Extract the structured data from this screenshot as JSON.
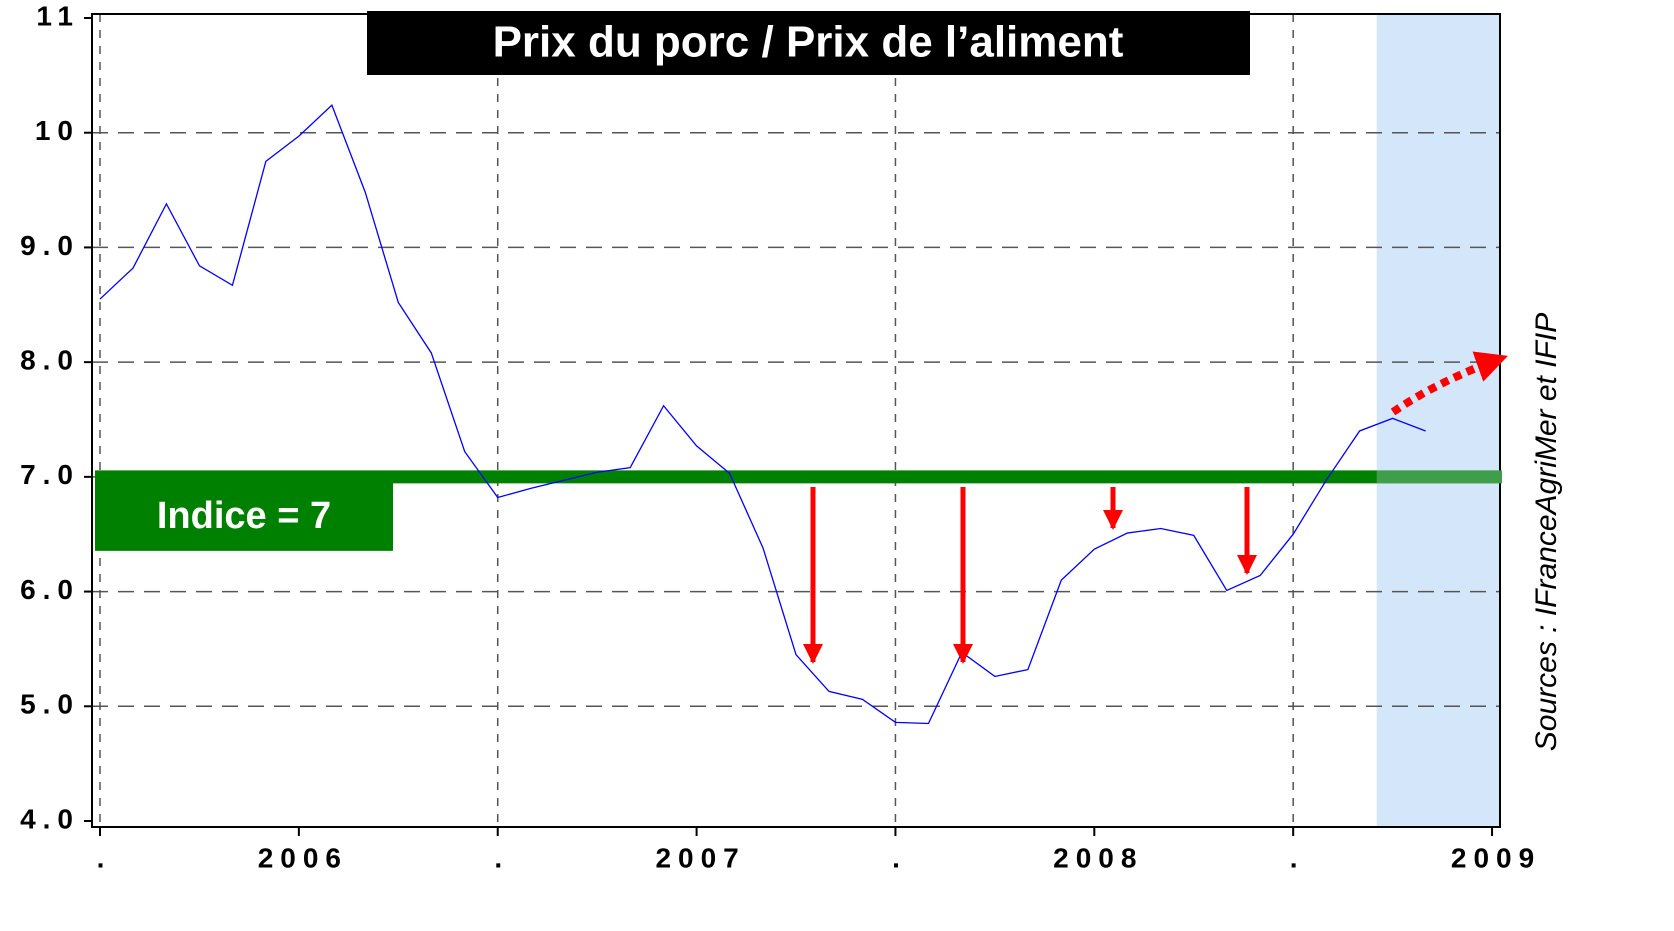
{
  "chart_data": {
    "type": "line",
    "title": "Prix du porc / Prix de l’aliment",
    "source": "Sources : IFranceAgriMer et IFIP",
    "x": [
      2005.5,
      2005.583,
      2005.667,
      2005.75,
      2005.833,
      2005.917,
      2006,
      2006.083,
      2006.167,
      2006.25,
      2006.333,
      2006.417,
      2006.5,
      2006.583,
      2006.667,
      2006.75,
      2006.833,
      2006.917,
      2007,
      2007.083,
      2007.167,
      2007.25,
      2007.333,
      2007.417,
      2007.5,
      2007.583,
      2007.667,
      2007.75,
      2007.833,
      2007.917,
      2008,
      2008.083,
      2008.167,
      2008.25,
      2008.333,
      2008.417,
      2008.5,
      2008.583,
      2008.667,
      2008.75,
      2008.833
    ],
    "series": [
      {
        "name": "Prix du porc / Prix de l’aliment",
        "color": "#0000ff",
        "values": [
          8.55,
          8.82,
          9.38,
          8.84,
          8.67,
          9.75,
          9.97,
          10.24,
          9.48,
          8.52,
          8.08,
          7.22,
          6.82,
          6.9,
          6.97,
          7.04,
          7.08,
          7.62,
          7.27,
          7.03,
          6.38,
          5.45,
          5.13,
          5.06,
          4.86,
          4.85,
          5.47,
          5.26,
          5.32,
          6.1,
          6.37,
          6.51,
          6.55,
          6.49,
          6.01,
          6.14,
          6.5,
          6.97,
          7.4,
          7.51,
          7.4
        ]
      }
    ],
    "xlim": [
      2005.5,
      2009.02
    ],
    "xticks": [
      {
        "value": 2005.5,
        "label": "."
      },
      2006,
      {
        "value": 2006.5,
        "label": "."
      },
      2007,
      {
        "value": 2007.5,
        "label": "."
      },
      2008,
      {
        "value": 2008.5,
        "label": "."
      },
      2009
    ],
    "xgrid": [
      2005.5,
      2006.5,
      2007.5,
      2008.5
    ],
    "ylim": [
      4,
      11
    ],
    "yticks": [
      {
        "value": 4,
        "label": "4.0"
      },
      {
        "value": 5,
        "label": "5.0"
      },
      {
        "value": 6,
        "label": "6.0"
      },
      {
        "value": 7,
        "label": "7.0"
      },
      {
        "value": 8,
        "label": "8.0"
      },
      {
        "value": 9,
        "label": "9.0"
      },
      10,
      11
    ],
    "grid": true,
    "reference_line": {
      "value": 7,
      "label": "Indice = 7",
      "color": "#008000"
    },
    "shaded_xrange": [
      2008.71,
      2009.02
    ]
  }
}
